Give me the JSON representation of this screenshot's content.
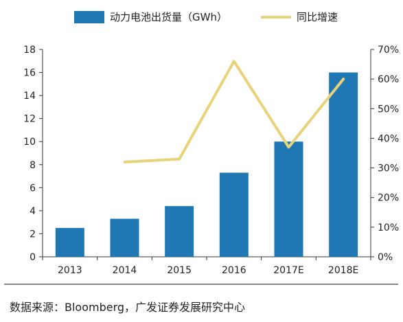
{
  "chart_data": {
    "type": "bar",
    "categories": [
      "2013",
      "2014",
      "2015",
      "2016",
      "2017E",
      "2018E"
    ],
    "series": [
      {
        "name": "动力电池出货量（GWh）",
        "kind": "bar",
        "axis": "left",
        "color": "#1F77B4",
        "values": [
          2.5,
          3.3,
          4.4,
          7.3,
          10.0,
          16.0
        ]
      },
      {
        "name": "同比增速",
        "kind": "line",
        "axis": "right",
        "color": "#E8D37A",
        "values": [
          null,
          32,
          33,
          66,
          37,
          60
        ]
      }
    ],
    "y_left": {
      "min": 0,
      "max": 18,
      "ticks": [
        "0",
        "2",
        "4",
        "6",
        "8",
        "10",
        "12",
        "14",
        "16",
        "18"
      ]
    },
    "y_right": {
      "min": 0,
      "max": 70,
      "ticks": [
        "0%",
        "10%",
        "20%",
        "30%",
        "40%",
        "50%",
        "60%",
        "70%"
      ]
    },
    "grid": false,
    "legend_position": "top"
  },
  "source": "数据来源：Bloomberg，广发证券发展研究中心"
}
